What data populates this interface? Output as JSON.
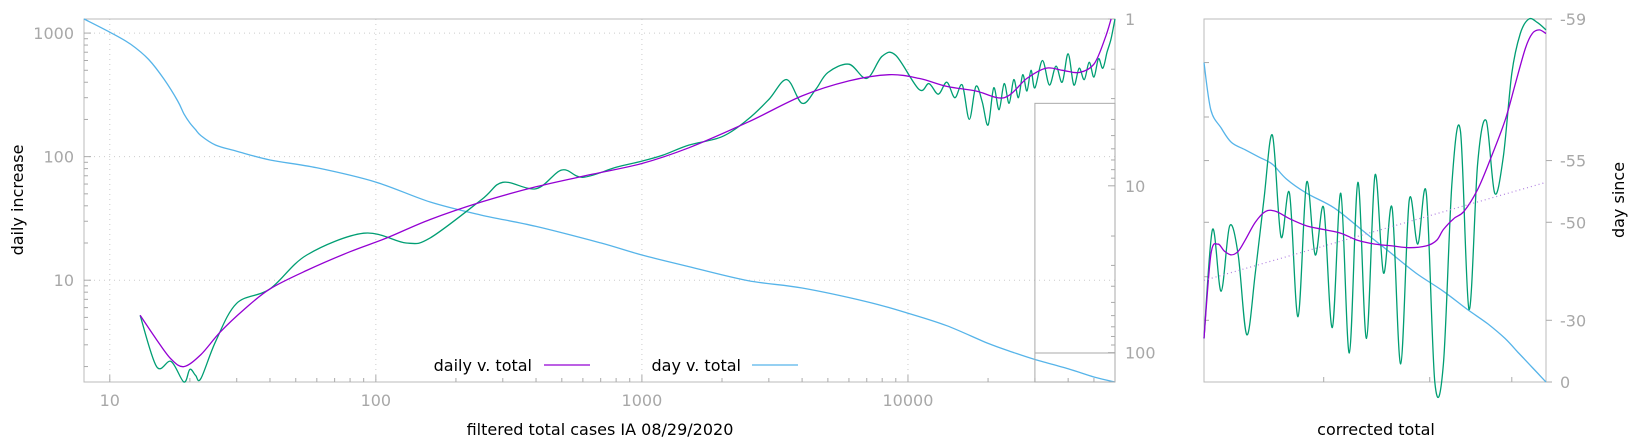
{
  "colors": {
    "daily_v_total": "#9400d3",
    "day_v_total": "#56b4e9",
    "raw_daily": "#009e73",
    "trend_dotted": "#b080e0",
    "tick_label": "#a8a8a8"
  },
  "chart_data": [
    {
      "type": "line",
      "title": "",
      "xlabel": "filtered total cases IA 08/29/2020",
      "ylabel": "daily increase",
      "y2label": "",
      "xscale": "log",
      "yscale": "log",
      "xlim": [
        8,
        60000
      ],
      "ylim": [
        1.5,
        1300
      ],
      "x_ticks": [
        "10",
        "100",
        "1000",
        "10000"
      ],
      "y_ticks": [
        "10",
        "100",
        "1000"
      ],
      "y2_scale": "log, reversed",
      "y2lim": [
        1,
        150
      ],
      "y2_ticks": [
        "1",
        "10",
        "100"
      ],
      "grid": true,
      "legend_position": "bottom-center",
      "series": [
        {
          "name": "daily v. total",
          "axis": "left",
          "x": [
            13,
            15,
            17,
            19,
            22,
            26,
            32,
            40,
            55,
            80,
            110,
            160,
            250,
            400,
            650,
            1000,
            1500,
            2500,
            4000,
            6000,
            8500,
            11000,
            14000,
            18000,
            23000,
            28000,
            33000,
            38000,
            44000,
            50000,
            55000,
            58000
          ],
          "values": [
            5.2,
            3.3,
            2.3,
            2.0,
            2.5,
            3.8,
            5.8,
            8.5,
            12,
            17,
            22,
            31,
            43,
            57,
            72,
            88,
            118,
            190,
            310,
            410,
            460,
            430,
            370,
            340,
            300,
            430,
            520,
            500,
            480,
            560,
            900,
            1300
          ]
        },
        {
          "name": "day v. total",
          "axis": "right",
          "x": [
            8,
            10,
            12,
            14,
            16,
            18,
            19,
            20,
            21,
            22,
            25,
            30,
            40,
            60,
            100,
            160,
            250,
            400,
            700,
            1000,
            1500,
            2500,
            4000,
            7000,
            10000,
            14000,
            20000,
            25000,
            30000,
            40000,
            50000,
            60000
          ],
          "values": [
            1.0,
            1.2,
            1.42,
            1.75,
            2.3,
            3.1,
            3.7,
            4.2,
            4.6,
            5.0,
            5.7,
            6.2,
            7.0,
            7.8,
            9.5,
            12.5,
            15,
            17.5,
            22,
            26,
            30.5,
            37,
            41,
            49.5,
            58,
            69,
            88,
            100,
            110,
            125,
            140,
            150
          ]
        },
        {
          "name": "",
          "axis": "left",
          "x": [
            13,
            15,
            17,
            19,
            20,
            21,
            22,
            25,
            30,
            40,
            55,
            90,
            130,
            160,
            250,
            300,
            400,
            500,
            600,
            800,
            1000,
            1200,
            1500,
            2000,
            2500,
            3000,
            3500,
            4000,
            4500,
            5000,
            6000,
            7000,
            8000,
            9000,
            11000,
            12000,
            13000,
            14000,
            15000,
            16000,
            17000,
            18000,
            19000,
            20000,
            21000,
            22000,
            23000,
            24000,
            25000,
            26000,
            27000,
            28000,
            29000,
            30000,
            32000,
            34000,
            36000,
            38000,
            40000,
            42000,
            44000,
            46000,
            48000,
            50000,
            52000,
            54000,
            56000,
            58000,
            60000
          ],
          "values": [
            5.2,
            2.0,
            2.2,
            1.5,
            1.9,
            1.7,
            1.6,
            3.2,
            6.5,
            8.5,
            16,
            24,
            20,
            22,
            45,
            62,
            55,
            78,
            68,
            82,
            92,
            103,
            124,
            145,
            200,
            290,
            420,
            270,
            350,
            480,
            560,
            430,
            650,
            660,
            350,
            390,
            320,
            400,
            300,
            380,
            200,
            370,
            280,
            180,
            360,
            240,
            390,
            270,
            420,
            300,
            460,
            340,
            500,
            360,
            600,
            380,
            540,
            400,
            680,
            380,
            520,
            420,
            580,
            440,
            620,
            520,
            700,
            900,
            1300
          ]
        }
      ],
      "inset_box": {
        "x": [
          30000,
          60000
        ],
        "y": [
          1.5,
          270
        ]
      }
    },
    {
      "type": "line",
      "xlabel": "corrected total",
      "ylabel": "",
      "y2label": "day since",
      "y2_ticks": [
        "-59",
        "-55",
        "-50",
        "-30",
        "0"
      ],
      "series": [
        {
          "name": "",
          "x": [
            0,
            2,
            5,
            8,
            12,
            16,
            20,
            24,
            30,
            38,
            46,
            54,
            62,
            70,
            77,
            83,
            88,
            92,
            96,
            100
          ],
          "values": [
            0.88,
            0.75,
            0.7,
            0.66,
            0.64,
            0.62,
            0.6,
            0.56,
            0.52,
            0.48,
            0.42,
            0.36,
            0.3,
            0.25,
            0.2,
            0.16,
            0.12,
            0.08,
            0.04,
            0.0
          ]
        },
        {
          "name": "",
          "x": [
            0,
            2,
            4,
            6,
            8,
            10,
            12,
            15,
            18,
            21,
            25,
            30,
            35,
            40,
            45,
            50,
            55,
            60,
            65,
            68,
            70,
            73,
            76,
            80,
            84,
            88,
            91,
            94,
            96,
            98,
            100
          ],
          "values": [
            0.12,
            0.35,
            0.38,
            0.36,
            0.35,
            0.36,
            0.39,
            0.44,
            0.47,
            0.47,
            0.45,
            0.43,
            0.42,
            0.41,
            0.39,
            0.38,
            0.375,
            0.37,
            0.375,
            0.39,
            0.42,
            0.45,
            0.47,
            0.53,
            0.62,
            0.72,
            0.82,
            0.92,
            0.96,
            0.97,
            0.96
          ]
        },
        {
          "name": "",
          "x": [
            0,
            2.5,
            5,
            7.5,
            10,
            12.5,
            15,
            17.5,
            20,
            22.5,
            25,
            27.5,
            30,
            32.5,
            35,
            37.5,
            40,
            42.5,
            45,
            47.5,
            50,
            52.5,
            55,
            57.5,
            60,
            62.5,
            65,
            67.5,
            70,
            72.5,
            75,
            77.5,
            80,
            82.5,
            85,
            87.5,
            90,
            92.5,
            95,
            97.5,
            100
          ],
          "values": [
            0.12,
            0.42,
            0.25,
            0.43,
            0.35,
            0.13,
            0.3,
            0.5,
            0.68,
            0.4,
            0.52,
            0.18,
            0.55,
            0.35,
            0.48,
            0.15,
            0.52,
            0.08,
            0.55,
            0.12,
            0.57,
            0.3,
            0.48,
            0.05,
            0.5,
            0.38,
            0.52,
            0.0,
            0.05,
            0.55,
            0.69,
            0.2,
            0.6,
            0.72,
            0.52,
            0.62,
            0.85,
            0.96,
            1.0,
            0.99,
            0.97
          ]
        },
        {
          "name": "",
          "style": "dotted",
          "x": [
            0,
            100
          ],
          "values": [
            0.28,
            0.55
          ]
        }
      ]
    }
  ],
  "legend": [
    {
      "label": "daily v. total"
    },
    {
      "label": "day v. total"
    }
  ]
}
